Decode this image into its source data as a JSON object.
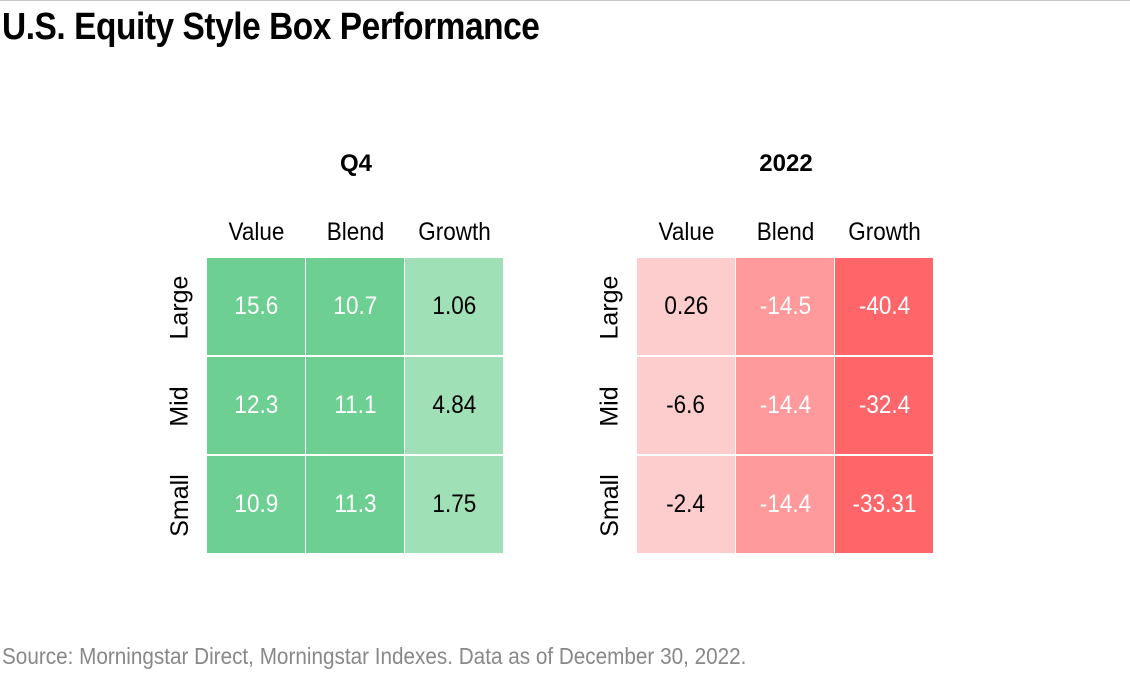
{
  "title": "U.S. Equity Style Box Performance",
  "source": "Source: Morningstar Direct, Morningstar Indexes. Data as of December 30, 2022.",
  "chart_data": [
    {
      "type": "heatmap",
      "title": "Q4",
      "columns": [
        "Value",
        "Blend",
        "Growth"
      ],
      "rows": [
        "Large",
        "Mid",
        "Small"
      ],
      "values": [
        [
          "15.6",
          "10.7",
          "1.06"
        ],
        [
          "12.3",
          "11.1",
          "4.84"
        ],
        [
          "10.9",
          "11.3",
          "1.75"
        ]
      ],
      "colors": [
        [
          "#6dd092",
          "#6dd092",
          "#9fe0b6"
        ],
        [
          "#6dd092",
          "#6dd092",
          "#9fe0b6"
        ],
        [
          "#6dd092",
          "#6dd092",
          "#9fe0b6"
        ]
      ],
      "text_colors": [
        [
          "#ffffff",
          "#ffffff",
          "#000000"
        ],
        [
          "#ffffff",
          "#ffffff",
          "#000000"
        ],
        [
          "#ffffff",
          "#ffffff",
          "#000000"
        ]
      ]
    },
    {
      "type": "heatmap",
      "title": "2022",
      "columns": [
        "Value",
        "Blend",
        "Growth"
      ],
      "rows": [
        "Large",
        "Mid",
        "Small"
      ],
      "values": [
        [
          "0.26",
          "-14.5",
          "-40.4"
        ],
        [
          "-6.6",
          "-14.4",
          "-32.4"
        ],
        [
          "-2.4",
          "-14.4",
          "-33.31"
        ]
      ],
      "colors": [
        [
          "#fdcccd",
          "#fe9a9c",
          "#ff666a"
        ],
        [
          "#fdcccd",
          "#fe9a9c",
          "#ff666a"
        ],
        [
          "#fdcccd",
          "#fe9a9c",
          "#ff666a"
        ]
      ],
      "text_colors": [
        [
          "#000000",
          "#ffffff",
          "#ffffff"
        ],
        [
          "#000000",
          "#ffffff",
          "#ffffff"
        ],
        [
          "#000000",
          "#ffffff",
          "#ffffff"
        ]
      ]
    }
  ]
}
